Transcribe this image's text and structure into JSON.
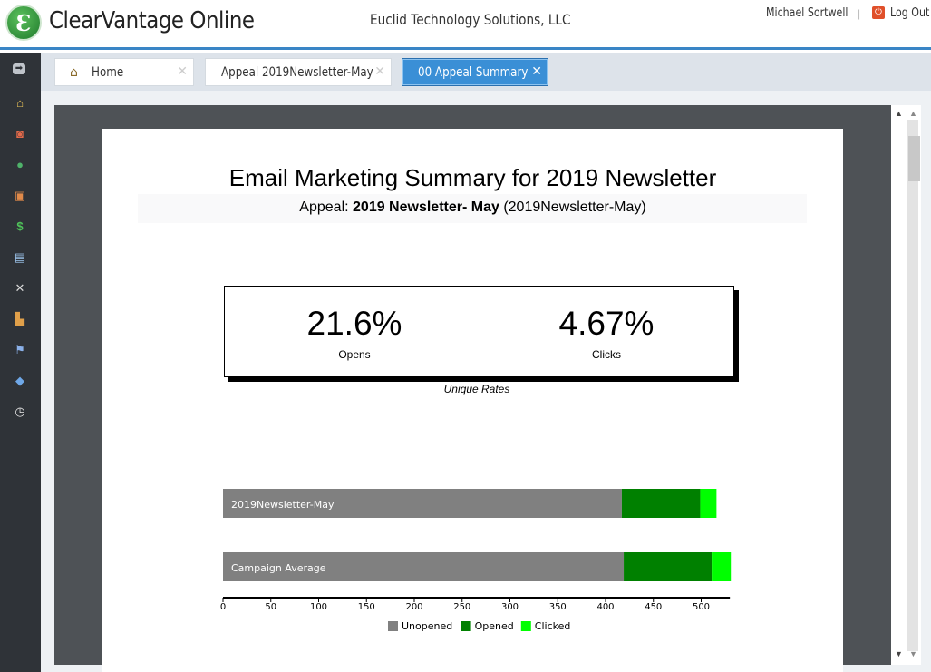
{
  "header": {
    "app_title": "ClearVantage Online",
    "logo_letter": "Ɛ",
    "organization": "Euclid Technology Solutions, LLC",
    "user_name": "Michael Sortwell",
    "separator": "|",
    "logout_label": "Log Out"
  },
  "sidebar": {
    "icons": [
      "arrow-right-icon",
      "home-icon",
      "contacts-icon",
      "globe-icon",
      "certificate-icon",
      "dollar-icon",
      "document-icon",
      "tools-icon",
      "buildings-icon",
      "flag-icon",
      "paint-bucket-icon",
      "clock-icon"
    ]
  },
  "tabs": [
    {
      "label": "Home",
      "icon": "home-icon",
      "active": false
    },
    {
      "label": "Appeal 2019Newsletter-May",
      "active": false
    },
    {
      "label": "00 Appeal Summary",
      "active": true
    }
  ],
  "report": {
    "title": "Email Marketing Summary for 2019 Newsletter",
    "appeal_prefix": "Appeal: ",
    "appeal_name": "2019 Newsletter- May",
    "appeal_code": " (2019Newsletter-May)",
    "opens_rate": "21.6%",
    "opens_label": "Opens",
    "clicks_rate": "4.67%",
    "clicks_label": "Clicks",
    "rates_caption": "Unique Rates"
  },
  "chart_data": {
    "type": "bar",
    "orientation": "horizontal",
    "stacked": true,
    "categories": [
      "2019Newsletter-May",
      "Campaign Average"
    ],
    "series": [
      {
        "name": "Unopened",
        "color": "#808080",
        "values": [
          417,
          419
        ]
      },
      {
        "name": "Opened",
        "color": "#008000",
        "values": [
          82,
          92
        ]
      },
      {
        "name": "Clicked",
        "color": "#00ff00",
        "values": [
          17,
          20
        ]
      }
    ],
    "xlim": [
      0,
      530
    ],
    "xticks": [
      0,
      50,
      100,
      150,
      200,
      250,
      300,
      350,
      400,
      450,
      500
    ],
    "legend_position": "bottom"
  }
}
